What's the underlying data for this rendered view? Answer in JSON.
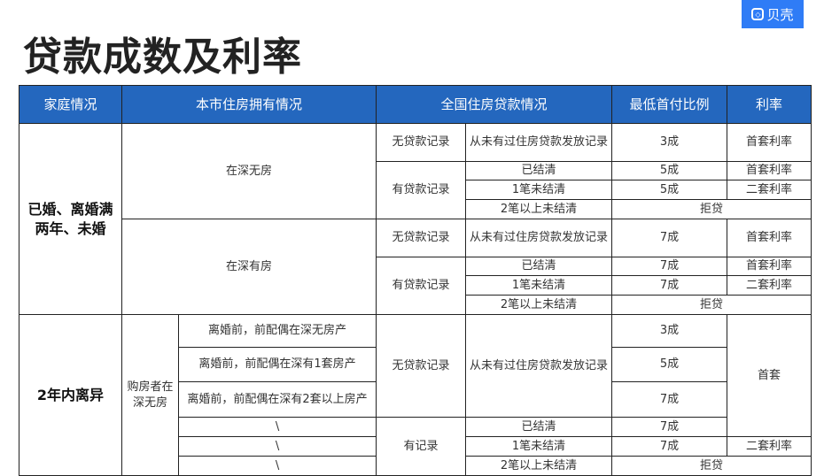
{
  "logo": {
    "text": "贝壳",
    "color": "#2f7cf6"
  },
  "title": "贷款成数及利率",
  "colors": {
    "header_bg": "#2467be",
    "header_text": "#ffffff"
  },
  "table": {
    "headers": [
      {
        "text": "家庭情况",
        "colspan": 1
      },
      {
        "text": "本市住房拥有情况",
        "colspan": 2
      },
      {
        "text": "全国住房贷款情况",
        "colspan": 2
      },
      {
        "text": "最低首付比例",
        "colspan": 1
      },
      {
        "text": "利率",
        "colspan": 1
      }
    ],
    "rows": [
      [
        {
          "text": "已婚、离婚满两年、未婚",
          "rowspan": 8,
          "bold": true
        },
        {
          "text": "在深无房",
          "rowspan": 4,
          "colspan": 2
        },
        {
          "text": "无贷款记录"
        },
        {
          "text": "从未有过住房贷款发放记录"
        },
        {
          "text": "3成"
        },
        {
          "text": "首套利率"
        }
      ],
      [
        {
          "text": "有贷款记录",
          "rowspan": 3
        },
        {
          "text": "已结清"
        },
        {
          "text": "5成"
        },
        {
          "text": "首套利率"
        }
      ],
      [
        {
          "text": "1笔未结清"
        },
        {
          "text": "5成"
        },
        {
          "text": "二套利率"
        }
      ],
      [
        {
          "text": "2笔以上未结清"
        },
        {
          "text": "拒贷",
          "colspan": 2
        }
      ],
      [
        {
          "text": "在深有房",
          "rowspan": 4,
          "colspan": 2
        },
        {
          "text": "无贷款记录"
        },
        {
          "text": "从未有过住房贷款发放记录"
        },
        {
          "text": "7成"
        },
        {
          "text": "首套利率"
        }
      ],
      [
        {
          "text": "有贷款记录",
          "rowspan": 3
        },
        {
          "text": "已结清"
        },
        {
          "text": "7成"
        },
        {
          "text": "首套利率"
        }
      ],
      [
        {
          "text": "1笔未结清"
        },
        {
          "text": "7成"
        },
        {
          "text": "二套利率"
        }
      ],
      [
        {
          "text": "2笔以上未结清"
        },
        {
          "text": "拒贷",
          "colspan": 2
        }
      ],
      [
        {
          "text": "2年内离异",
          "rowspan": 6,
          "bold": true
        },
        {
          "text": "购房者在深无房",
          "rowspan": 6
        },
        {
          "text": "离婚前，前配偶在深无房产"
        },
        {
          "text": "无贷款记录",
          "rowspan": 3
        },
        {
          "text": "从未有过住房贷款发放记录",
          "rowspan": 3
        },
        {
          "text": "3成"
        },
        {
          "text": "首套",
          "rowspan": 4
        }
      ],
      [
        {
          "text": "离婚前，前配偶在深有1套房产"
        },
        {
          "text": "5成"
        }
      ],
      [
        {
          "text": "离婚前，前配偶在深有2套以上房产"
        },
        {
          "text": "7成"
        }
      ],
      [
        {
          "text": "\\"
        },
        {
          "text": "有记录",
          "rowspan": 3
        },
        {
          "text": "已结清"
        },
        {
          "text": "7成"
        }
      ],
      [
        {
          "text": "\\"
        },
        {
          "text": "1笔未结清"
        },
        {
          "text": "7成"
        },
        {
          "text": "二套利率"
        }
      ],
      [
        {
          "text": "\\"
        },
        {
          "text": "2笔以上未结清"
        },
        {
          "text": "拒贷",
          "colspan": 2
        }
      ]
    ]
  }
}
